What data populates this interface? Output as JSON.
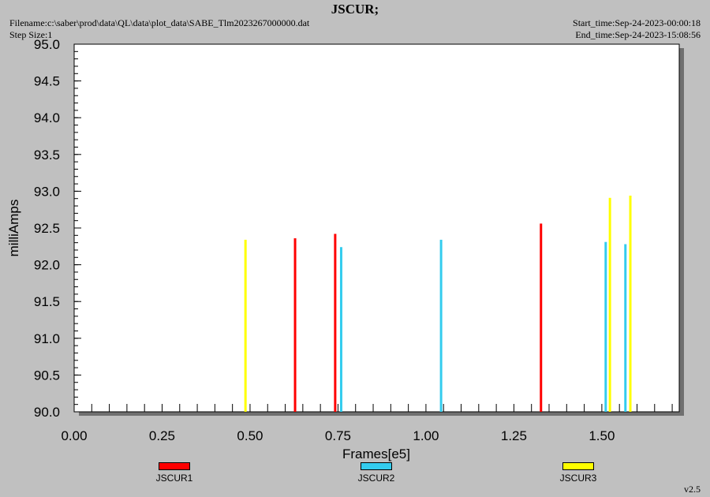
{
  "header": {
    "title": "JSCUR;",
    "filename": "Filename:c:\\saber\\prod\\data\\QL\\data\\plot_data\\SABE_Tlm2023267000000.dat",
    "step_size": "Step Size:1",
    "start_time": "Start_time:Sep-24-2023-00:00:18",
    "end_time": "End_time:Sep-24-2023-15:08:56"
  },
  "version": "v2.5",
  "chart_data": {
    "type": "bar",
    "title": "JSCUR;",
    "xlabel": "Frames[e5]",
    "ylabel": "milliAmps",
    "xlim": [
      0.0,
      1.72
    ],
    "ylim": [
      90.0,
      95.0
    ],
    "xticks": [
      "0.00",
      "0.25",
      "0.50",
      "0.75",
      "1.00",
      "1.25",
      "1.50"
    ],
    "yticks": [
      "90.0",
      "90.5",
      "91.0",
      "91.5",
      "92.0",
      "92.5",
      "93.0",
      "93.5",
      "94.0",
      "94.5",
      "95.0"
    ],
    "grid": false,
    "legend_position": "bottom",
    "series": [
      {
        "name": "JSCUR1",
        "color": "#ff0000",
        "x": [
          0.628,
          0.742,
          1.327
        ],
        "y": [
          92.36,
          92.42,
          92.56
        ]
      },
      {
        "name": "JSCUR2",
        "color": "#33ccee",
        "x": [
          0.759,
          1.043,
          1.511,
          1.567
        ],
        "y": [
          92.24,
          92.34,
          92.31,
          92.28
        ]
      },
      {
        "name": "JSCUR3",
        "color": "#ffff00",
        "x": [
          0.487,
          1.523,
          1.581
        ],
        "y": [
          92.34,
          92.91,
          92.94
        ]
      }
    ]
  }
}
